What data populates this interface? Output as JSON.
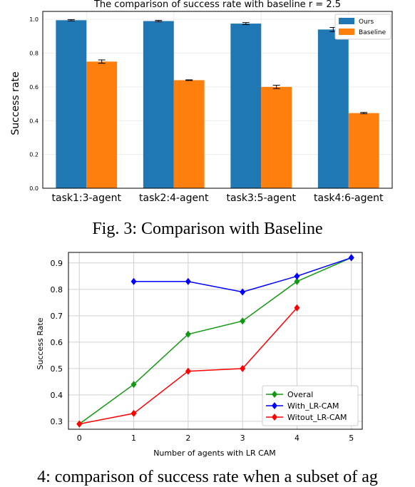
{
  "chart_data": [
    {
      "type": "bar",
      "title": "The comparison of success rate with baseline r = 2.5",
      "xlabel": "",
      "ylabel": "Success rate",
      "ylim": [
        0.0,
        1.0
      ],
      "yticks": [
        "0.0",
        "0.2",
        "0.4",
        "0.6",
        "0.8",
        "1.0"
      ],
      "categories": [
        "task1:3-agent",
        "task2:4-agent",
        "task3:5-agent",
        "task4:6-agent"
      ],
      "series": [
        {
          "name": "Ours",
          "values": [
            0.995,
            0.99,
            0.975,
            0.94
          ],
          "errors": [
            0.004,
            0.004,
            0.006,
            0.012
          ],
          "color": "#1f77b4"
        },
        {
          "name": "Baseline",
          "values": [
            0.75,
            0.64,
            0.6,
            0.445
          ],
          "errors": [
            0.01,
            0.002,
            0.01,
            0.004
          ],
          "color": "#ff7f0e"
        }
      ],
      "grid": true,
      "legend": "top-right",
      "caption": "Fig. 3: Comparison with Baseline"
    },
    {
      "type": "line",
      "title": "",
      "xlabel": "Number of agents with LR CAM",
      "ylabel": "Success Rate",
      "xlim": [
        -0.2,
        5.2
      ],
      "ylim": [
        0.27,
        0.94
      ],
      "xticks": [
        0,
        1,
        2,
        3,
        4,
        5
      ],
      "yticks": [
        0.3,
        0.4,
        0.5,
        0.6,
        0.7,
        0.8,
        0.9
      ],
      "series": [
        {
          "name": "Overal",
          "x": [
            0,
            1,
            2,
            3,
            4,
            5
          ],
          "y": [
            0.29,
            0.44,
            0.63,
            0.68,
            0.83,
            0.92
          ],
          "color": "#119911"
        },
        {
          "name": "With_LR-CAM",
          "x": [
            1,
            2,
            3,
            4,
            5
          ],
          "y": [
            0.83,
            0.83,
            0.79,
            0.85,
            0.92
          ],
          "color": "#0000ff"
        },
        {
          "name": "Witout_LR-CAM",
          "x": [
            0,
            1,
            2,
            3,
            4
          ],
          "y": [
            0.29,
            0.33,
            0.49,
            0.5,
            0.73
          ],
          "color": "#ff0000"
        }
      ],
      "grid": true,
      "legend": "bottom-right",
      "caption": "4: comparison of success rate when a subset of ag"
    }
  ]
}
